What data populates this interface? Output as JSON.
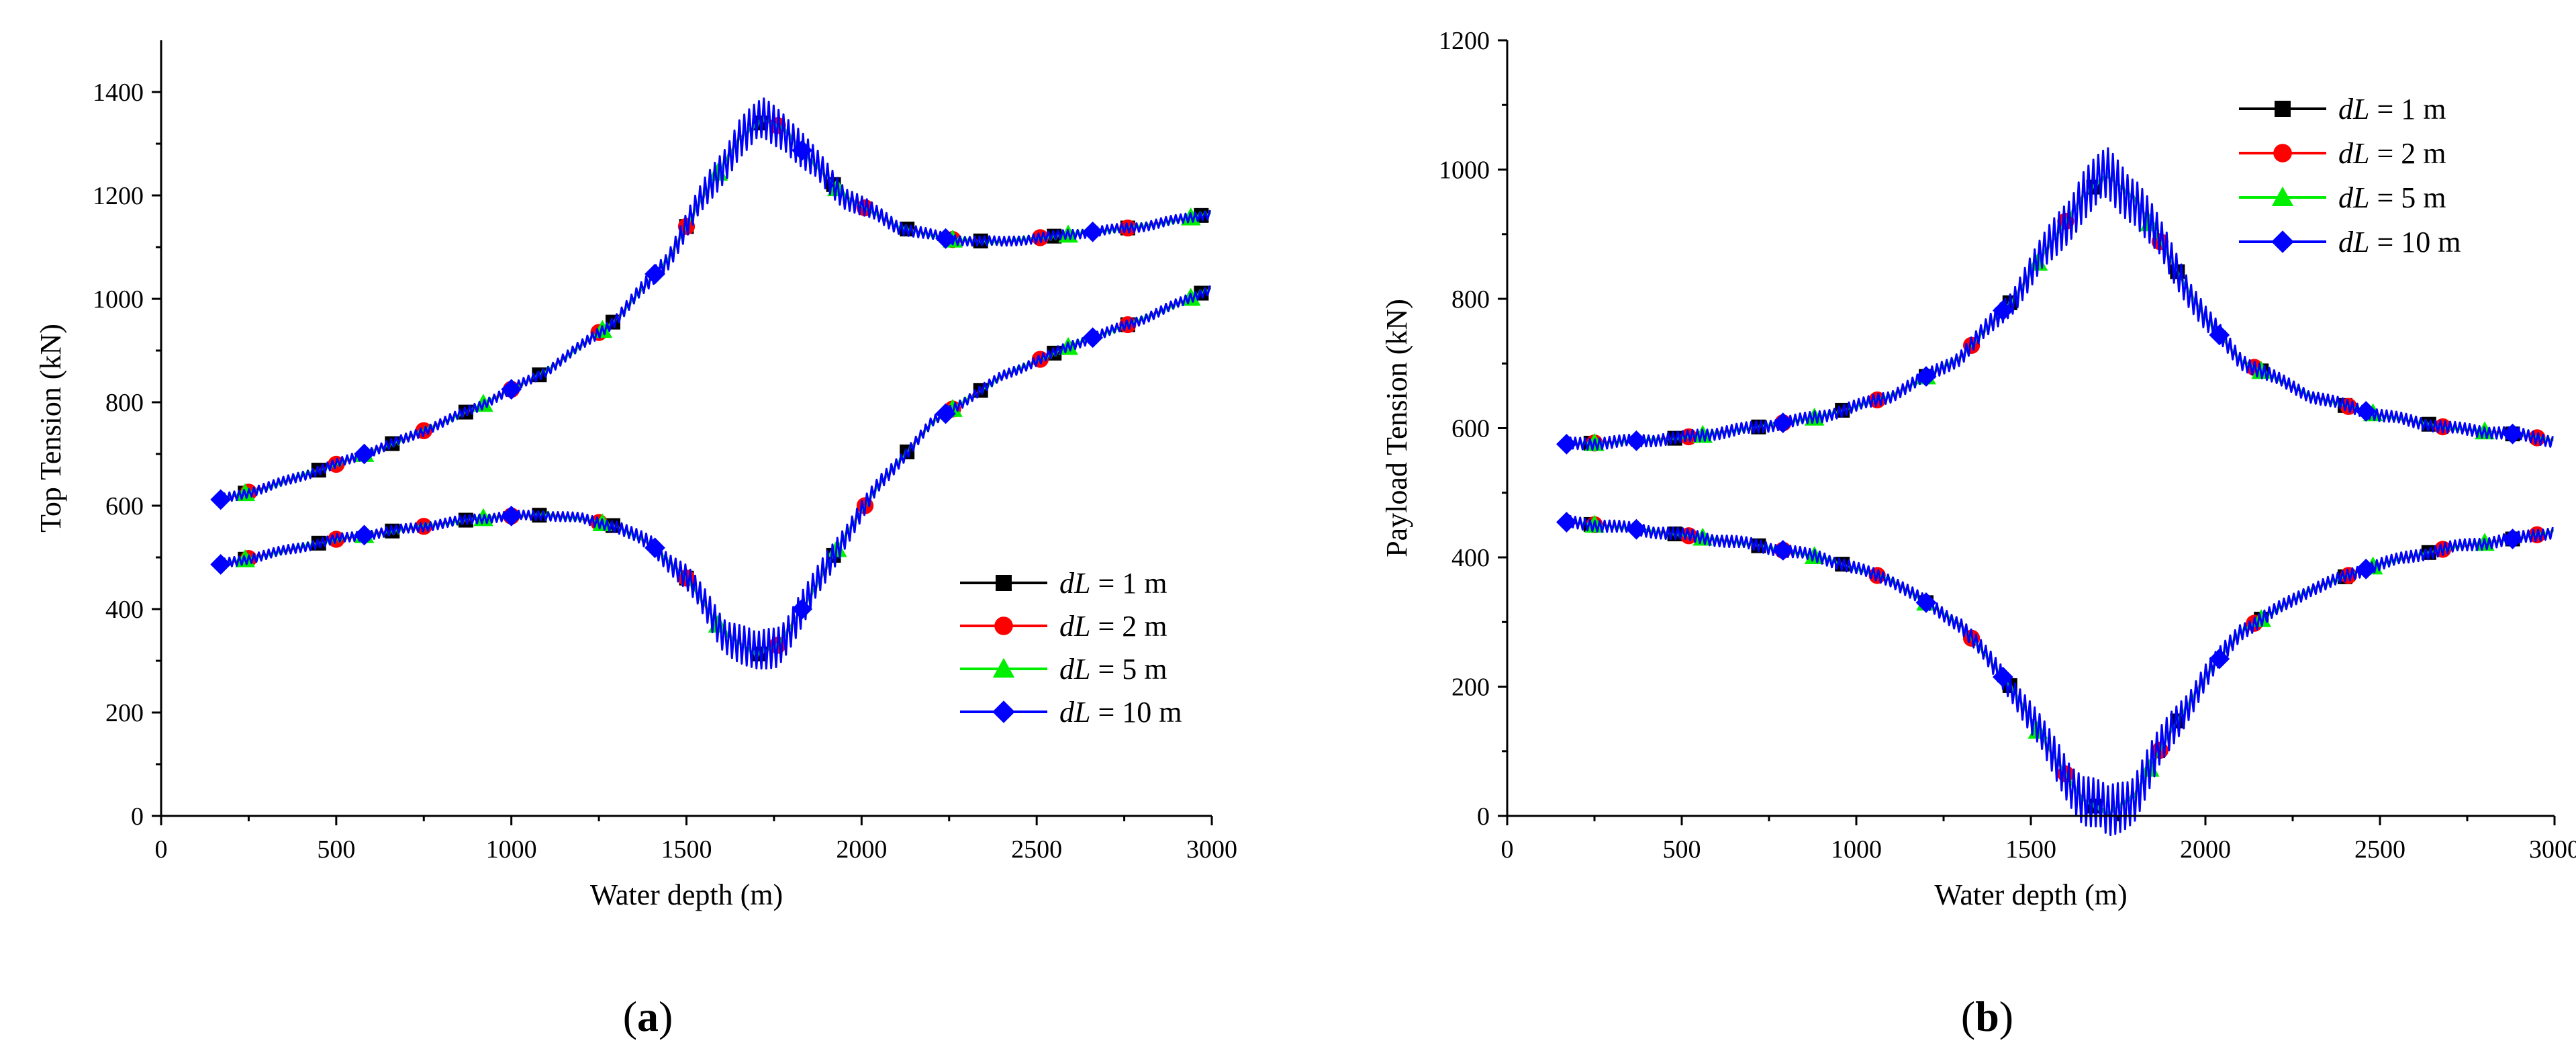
{
  "chart_data": [
    {
      "type": "line",
      "panel_label_prefix": "(",
      "panel_label_letter": "a",
      "panel_label_suffix": ")",
      "xlabel": "Water depth (m)",
      "ylabel": "Top Tension (kN)",
      "xlim": [
        0,
        3000
      ],
      "ylim": [
        0,
        1500
      ],
      "xticks": [
        0,
        500,
        1000,
        1500,
        2000,
        2500,
        3000
      ],
      "yticks": [
        0,
        200,
        400,
        600,
        800,
        1000,
        1200,
        1400
      ],
      "legend_position": "bottom-right",
      "envelopes": [
        {
          "name": "upper",
          "x": [
            160,
            300,
            500,
            700,
            900,
            1100,
            1300,
            1450,
            1550,
            1650,
            1720,
            1780,
            1850,
            1950,
            2100,
            2250,
            2400,
            2600,
            2800,
            3000
          ],
          "y": [
            610,
            635,
            680,
            730,
            790,
            860,
            960,
            1080,
            1200,
            1310,
            1345,
            1330,
            1270,
            1200,
            1140,
            1115,
            1110,
            1125,
            1140,
            1165
          ]
        },
        {
          "name": "lower",
          "x": [
            160,
            300,
            500,
            700,
            900,
            1000,
            1100,
            1200,
            1300,
            1400,
            1500,
            1600,
            1700,
            1760,
            1850,
            1950,
            2050,
            2200,
            2400,
            2600,
            2800,
            3000
          ],
          "y": [
            485,
            505,
            535,
            555,
            575,
            580,
            582,
            575,
            560,
            525,
            460,
            360,
            310,
            330,
            420,
            540,
            640,
            760,
            850,
            910,
            960,
            1020
          ]
        }
      ],
      "series": [
        {
          "name": "dL = 1 m",
          "legend_var": "dL",
          "legend_rest": " = 1 m",
          "color": "#000000",
          "marker": "square",
          "noise": 3,
          "upper_markers": [
            240,
            450,
            660,
            870,
            1080,
            1290,
            1500,
            1710,
            1920,
            2130,
            2340,
            2550,
            2760,
            2970
          ],
          "lower_markers": [
            240,
            450,
            660,
            870,
            1080,
            1290,
            1500,
            1710,
            1920,
            2130,
            2340,
            2550,
            2760,
            2970
          ]
        },
        {
          "name": "dL = 2 m",
          "legend_var": "dL",
          "legend_rest": " = 2 m",
          "color": "#ff0000",
          "marker": "circle",
          "noise": 4,
          "upper_markers": [
            250,
            500,
            750,
            1000,
            1250,
            1500,
            1760,
            2010,
            2260,
            2510,
            2760
          ],
          "lower_markers": [
            250,
            500,
            750,
            1000,
            1250,
            1500,
            1760,
            2010,
            2260,
            2510,
            2760
          ]
        },
        {
          "name": "dL = 5 m",
          "legend_var": "dL",
          "legend_rest": " = 5 m",
          "color": "#00ee00",
          "marker": "triangle",
          "noise": 5,
          "upper_markers": [
            240,
            580,
            920,
            1260,
            1590,
            1930,
            2260,
            2590,
            2940
          ],
          "lower_markers": [
            240,
            580,
            920,
            1260,
            1590,
            1930,
            2260,
            2590,
            2940
          ]
        },
        {
          "name": "dL = 10 m",
          "legend_var": "dL",
          "legend_rest": " = 10 m",
          "color": "#0000ff",
          "marker": "diamond",
          "noise": 22,
          "upper_markers": [
            170,
            580,
            1000,
            1410,
            1830,
            2240,
            2660
          ],
          "lower_markers": [
            170,
            580,
            1000,
            1410,
            1830,
            2240,
            2660
          ]
        }
      ]
    },
    {
      "type": "line",
      "panel_label_prefix": "(",
      "panel_label_letter": "b",
      "panel_label_suffix": ")",
      "xlabel": "Water depth (m)",
      "ylabel": "Payload Tension (kN)",
      "xlim": [
        0,
        3000
      ],
      "ylim": [
        0,
        1200
      ],
      "xticks": [
        0,
        500,
        1000,
        1500,
        2000,
        2500,
        3000
      ],
      "yticks": [
        0,
        200,
        400,
        600,
        800,
        1000,
        1200
      ],
      "legend_position": "top-right",
      "envelopes": [
        {
          "name": "upper",
          "x": [
            160,
            300,
            500,
            700,
            900,
            1100,
            1300,
            1450,
            1550,
            1650,
            1720,
            1800,
            1900,
            2000,
            2100,
            2300,
            2500,
            2700,
            2900,
            3000
          ],
          "y": [
            575,
            578,
            585,
            600,
            618,
            650,
            710,
            800,
            880,
            960,
            990,
            955,
            860,
            770,
            705,
            650,
            620,
            600,
            590,
            580
          ]
        },
        {
          "name": "lower",
          "x": [
            160,
            300,
            500,
            700,
            900,
            1100,
            1300,
            1450,
            1550,
            1650,
            1720,
            1800,
            1900,
            2000,
            2100,
            2300,
            2500,
            2700,
            2900,
            3000
          ],
          "y": [
            455,
            448,
            435,
            420,
            400,
            365,
            295,
            195,
            105,
            25,
            2,
            35,
            130,
            215,
            285,
            350,
            390,
            415,
            430,
            440
          ]
        }
      ],
      "series": [
        {
          "name": "dL = 1 m",
          "legend_var": "dL",
          "legend_rest": " = 1 m",
          "color": "#000000",
          "marker": "square",
          "noise": 3,
          "upper_markers": [
            240,
            480,
            720,
            960,
            1200,
            1440,
            1680,
            1920,
            2160,
            2400,
            2640,
            2880
          ],
          "lower_markers": [
            240,
            480,
            720,
            960,
            1200,
            1440,
            1680,
            1920,
            2160,
            2400,
            2640,
            2880
          ]
        },
        {
          "name": "dL = 2 m",
          "legend_var": "dL",
          "legend_rest": " = 2 m",
          "color": "#ff0000",
          "marker": "circle",
          "noise": 4,
          "upper_markers": [
            250,
            520,
            790,
            1060,
            1330,
            1600,
            1870,
            2140,
            2410,
            2680,
            2950
          ],
          "lower_markers": [
            250,
            520,
            790,
            1060,
            1330,
            1600,
            1870,
            2140,
            2410,
            2680,
            2950
          ]
        },
        {
          "name": "dL = 5 m",
          "legend_var": "dL",
          "legend_rest": " = 5 m",
          "color": "#00ee00",
          "marker": "triangle",
          "noise": 5,
          "upper_markers": [
            250,
            560,
            880,
            1200,
            1520,
            1840,
            2160,
            2480,
            2800
          ],
          "lower_markers": [
            250,
            560,
            880,
            1200,
            1520,
            1840,
            2160,
            2480,
            2800
          ]
        },
        {
          "name": "dL = 10 m",
          "legend_var": "dL",
          "legend_rest": " = 10 m",
          "color": "#0000ff",
          "marker": "diamond",
          "noise": 28,
          "upper_markers": [
            170,
            370,
            790,
            1200,
            1420,
            2040,
            2460,
            2880
          ],
          "lower_markers": [
            170,
            370,
            790,
            1200,
            1420,
            2040,
            2460,
            2880
          ]
        }
      ]
    }
  ]
}
